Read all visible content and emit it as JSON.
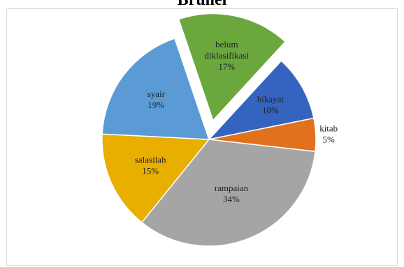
{
  "chart_data": {
    "type": "pie",
    "title": "Brunei",
    "slices": [
      {
        "label": "hikayat",
        "value": 10,
        "display": "10%",
        "color": "#3563c0"
      },
      {
        "label": "kitab",
        "value": 5,
        "display": "5%",
        "color": "#e2711d"
      },
      {
        "label": "rampaian",
        "value": 34,
        "display": "34%",
        "color": "#a5a5a5"
      },
      {
        "label": "salasilah",
        "value": 15,
        "display": "15%",
        "color": "#e8ae00"
      },
      {
        "label": "syair",
        "value": 19,
        "display": "19%",
        "color": "#5b9bd5"
      },
      {
        "label": "belum diklasifikasi",
        "label_lines": [
          "belum",
          "diklasifikasi"
        ],
        "value": 17,
        "display": "17%",
        "color": "#6aa83e",
        "exploded": true
      }
    ]
  }
}
